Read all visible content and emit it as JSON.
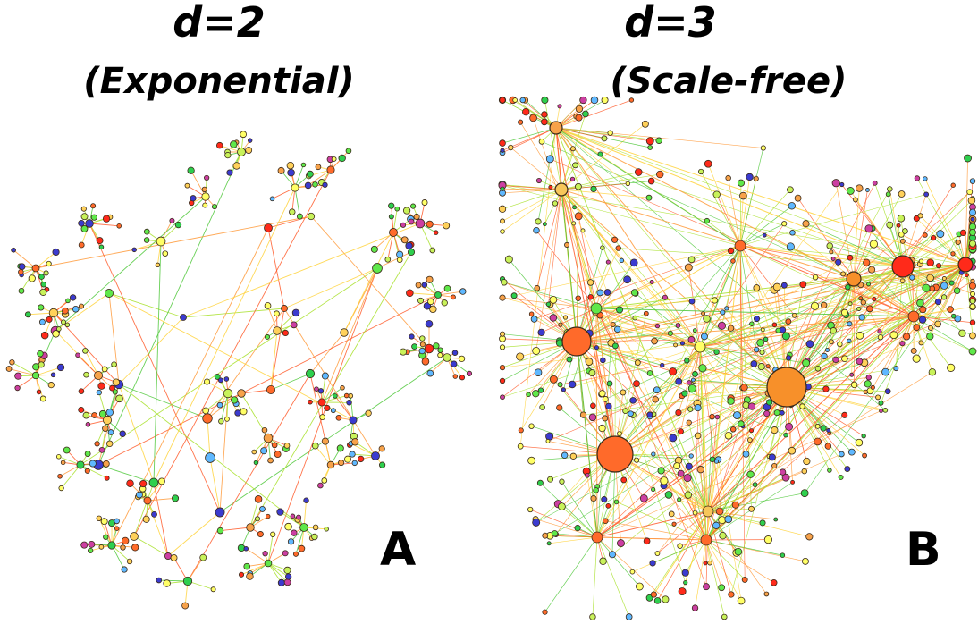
{
  "panels": [
    {
      "id": "A",
      "title": "d=2",
      "subtitle": "(Exponential)",
      "letter": "A"
    },
    {
      "id": "B",
      "title": "d=3",
      "subtitle": "(Scale-free)",
      "letter": "B"
    }
  ],
  "palette": {
    "node_colors": [
      "#ff2a1a",
      "#ff6a2a",
      "#f7a24a",
      "#ffd15a",
      "#ffff66",
      "#c8f25a",
      "#5fe84a",
      "#2ecf4e",
      "#cc3fa2",
      "#5fb8ff",
      "#3b3bcf"
    ],
    "edge_colors": [
      "#ff5a2a",
      "#ff9a3a",
      "#ffd23a",
      "#a8e02a",
      "#4fc83a"
    ],
    "outline": "#3a2a1a"
  }
}
